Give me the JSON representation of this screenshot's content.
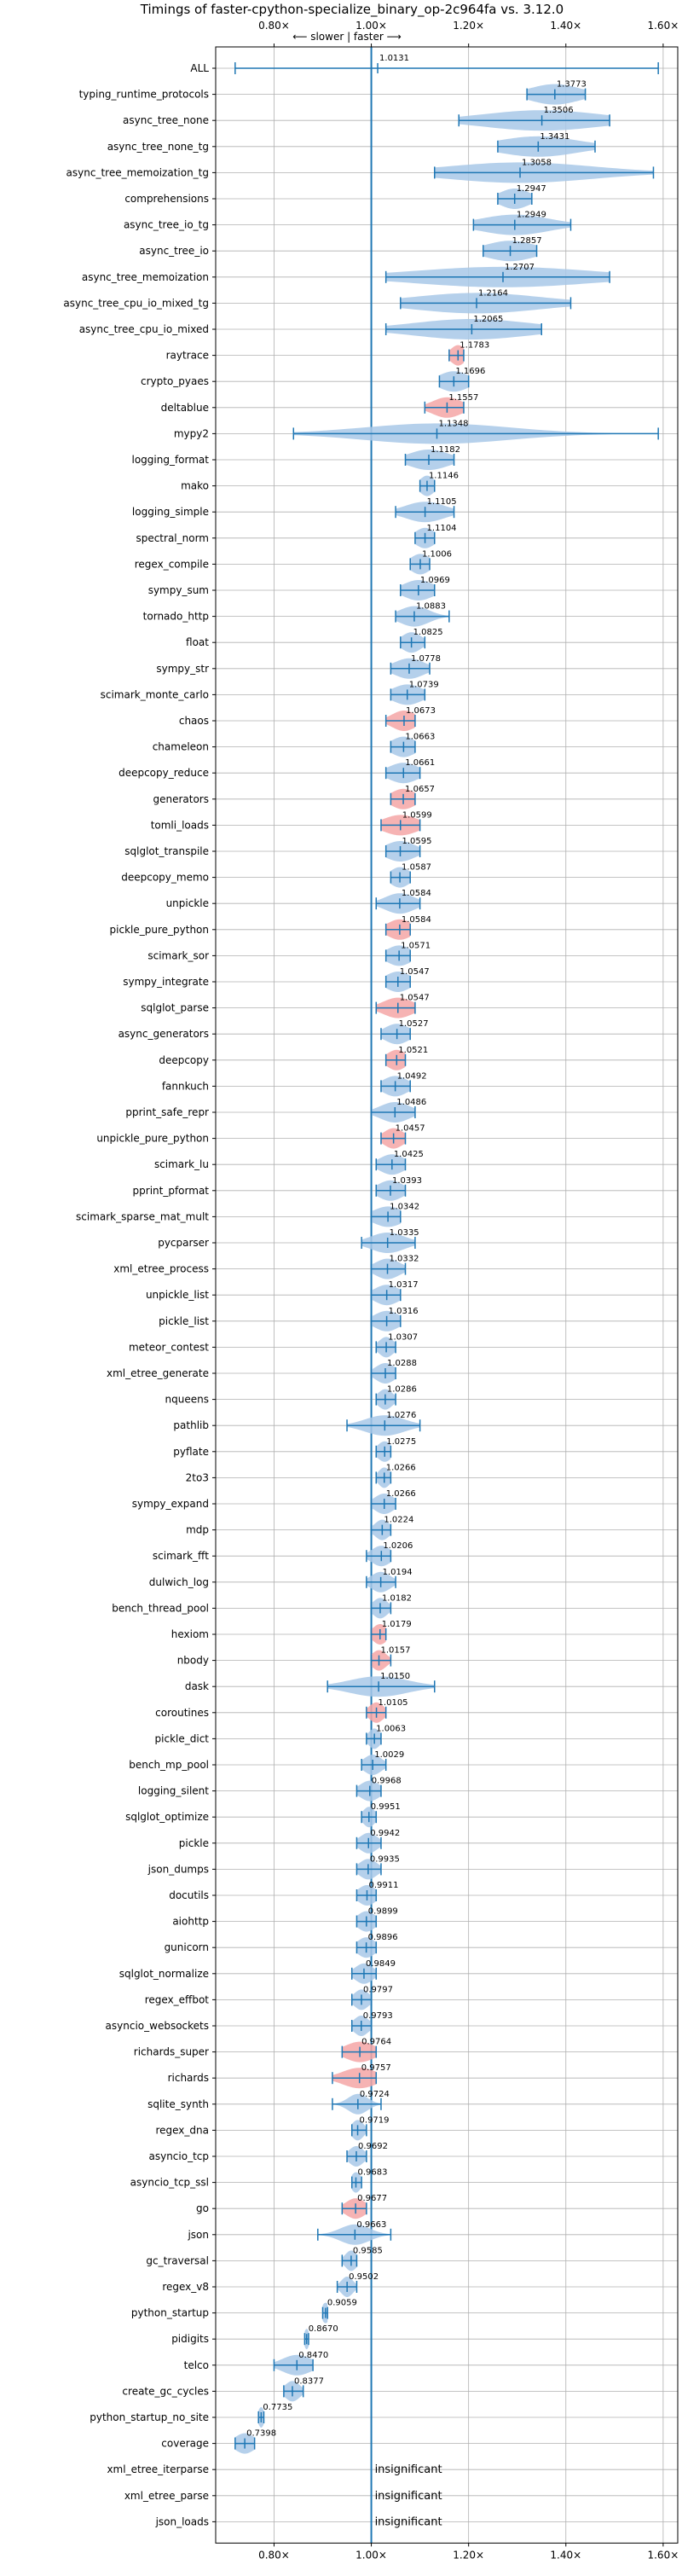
{
  "chart_data": {
    "type": "violin",
    "title": "Timings of faster-cpython-specialize_binary_op-2c964fa vs. 3.12.0",
    "direction_annotation": "⟵ slower | faster ⟶",
    "xlim": [
      0.68,
      1.63
    ],
    "x_ticks": [
      0.8,
      1.0,
      1.2,
      1.4,
      1.6
    ],
    "x_tick_labels": [
      "0.80×",
      "1.00×",
      "1.20×",
      "1.40×",
      "1.60×"
    ],
    "reference_x": 1.0,
    "colors": {
      "normal": "#a8c8e8",
      "highlight": "#f4a6a6",
      "line": "#1f77b4"
    },
    "insignificant_label": "insignificant",
    "benchmarks": [
      {
        "name": "ALL",
        "value": 1.0131,
        "label": "1.0131",
        "min": 0.72,
        "max": 1.59,
        "spread": 0.0,
        "highlight": false
      },
      {
        "name": "typing_runtime_protocols",
        "value": 1.3773,
        "label": "1.3773",
        "min": 1.32,
        "max": 1.44,
        "spread": 0.05,
        "highlight": false
      },
      {
        "name": "async_tree_none",
        "value": 1.3506,
        "label": "1.3506",
        "min": 1.18,
        "max": 1.49,
        "spread": 0.12,
        "highlight": false
      },
      {
        "name": "async_tree_none_tg",
        "value": 1.3431,
        "label": "1.3431",
        "min": 1.26,
        "max": 1.46,
        "spread": 0.08,
        "highlight": false
      },
      {
        "name": "async_tree_memoization_tg",
        "value": 1.3058,
        "label": "1.3058",
        "min": 1.13,
        "max": 1.58,
        "spread": 0.15,
        "highlight": false
      },
      {
        "name": "comprehensions",
        "value": 1.2947,
        "label": "1.2947",
        "min": 1.26,
        "max": 1.33,
        "spread": 0.03,
        "highlight": false
      },
      {
        "name": "async_tree_io_tg",
        "value": 1.2949,
        "label": "1.2949",
        "min": 1.21,
        "max": 1.41,
        "spread": 0.07,
        "highlight": false
      },
      {
        "name": "async_tree_io",
        "value": 1.2857,
        "label": "1.2857",
        "min": 1.23,
        "max": 1.34,
        "spread": 0.05,
        "highlight": false
      },
      {
        "name": "async_tree_memoization",
        "value": 1.2707,
        "label": "1.2707",
        "min": 1.03,
        "max": 1.49,
        "spread": 0.18,
        "highlight": false
      },
      {
        "name": "async_tree_cpu_io_mixed_tg",
        "value": 1.2164,
        "label": "1.2164",
        "min": 1.06,
        "max": 1.41,
        "spread": 0.13,
        "highlight": false
      },
      {
        "name": "async_tree_cpu_io_mixed",
        "value": 1.2065,
        "label": "1.2065",
        "min": 1.03,
        "max": 1.35,
        "spread": 0.12,
        "highlight": false
      },
      {
        "name": "raytrace",
        "value": 1.1783,
        "label": "1.1783",
        "min": 1.16,
        "max": 1.19,
        "spread": 0.015,
        "highlight": true
      },
      {
        "name": "crypto_pyaes",
        "value": 1.1696,
        "label": "1.1696",
        "min": 1.14,
        "max": 1.2,
        "spread": 0.03,
        "highlight": false
      },
      {
        "name": "deltablue",
        "value": 1.1557,
        "label": "1.1557",
        "min": 1.11,
        "max": 1.19,
        "spread": 0.03,
        "highlight": true
      },
      {
        "name": "mypy2",
        "value": 1.1348,
        "label": "1.1348",
        "min": 0.84,
        "max": 1.59,
        "spread": 0.15,
        "highlight": false
      },
      {
        "name": "logging_format",
        "value": 1.1182,
        "label": "1.1182",
        "min": 1.07,
        "max": 1.17,
        "spread": 0.04,
        "highlight": false
      },
      {
        "name": "mako",
        "value": 1.1146,
        "label": "1.1146",
        "min": 1.1,
        "max": 1.13,
        "spread": 0.015,
        "highlight": false
      },
      {
        "name": "logging_simple",
        "value": 1.1105,
        "label": "1.1105",
        "min": 1.05,
        "max": 1.17,
        "spread": 0.04,
        "highlight": false
      },
      {
        "name": "spectral_norm",
        "value": 1.1104,
        "label": "1.1104",
        "min": 1.09,
        "max": 1.13,
        "spread": 0.02,
        "highlight": false
      },
      {
        "name": "regex_compile",
        "value": 1.1006,
        "label": "1.1006",
        "min": 1.08,
        "max": 1.12,
        "spread": 0.02,
        "highlight": false
      },
      {
        "name": "sympy_sum",
        "value": 1.0969,
        "label": "1.0969",
        "min": 1.06,
        "max": 1.13,
        "spread": 0.03,
        "highlight": false
      },
      {
        "name": "tornado_http",
        "value": 1.0883,
        "label": "1.0883",
        "min": 1.05,
        "max": 1.16,
        "spread": 0.03,
        "highlight": false
      },
      {
        "name": "float",
        "value": 1.0825,
        "label": "1.0825",
        "min": 1.06,
        "max": 1.11,
        "spread": 0.02,
        "highlight": false
      },
      {
        "name": "sympy_str",
        "value": 1.0778,
        "label": "1.0778",
        "min": 1.04,
        "max": 1.12,
        "spread": 0.03,
        "highlight": false
      },
      {
        "name": "scimark_monte_carlo",
        "value": 1.0739,
        "label": "1.0739",
        "min": 1.04,
        "max": 1.11,
        "spread": 0.03,
        "highlight": false
      },
      {
        "name": "chaos",
        "value": 1.0673,
        "label": "1.0673",
        "min": 1.03,
        "max": 1.09,
        "spread": 0.025,
        "highlight": true
      },
      {
        "name": "chameleon",
        "value": 1.0663,
        "label": "1.0663",
        "min": 1.04,
        "max": 1.09,
        "spread": 0.025,
        "highlight": false
      },
      {
        "name": "deepcopy_reduce",
        "value": 1.0661,
        "label": "1.0661",
        "min": 1.03,
        "max": 1.1,
        "spread": 0.03,
        "highlight": false
      },
      {
        "name": "generators",
        "value": 1.0657,
        "label": "1.0657",
        "min": 1.04,
        "max": 1.09,
        "spread": 0.025,
        "highlight": true
      },
      {
        "name": "tomli_loads",
        "value": 1.0599,
        "label": "1.0599",
        "min": 1.02,
        "max": 1.1,
        "spread": 0.035,
        "highlight": true
      },
      {
        "name": "sqlglot_transpile",
        "value": 1.0595,
        "label": "1.0595",
        "min": 1.03,
        "max": 1.1,
        "spread": 0.03,
        "highlight": false
      },
      {
        "name": "deepcopy_memo",
        "value": 1.0587,
        "label": "1.0587",
        "min": 1.04,
        "max": 1.08,
        "spread": 0.02,
        "highlight": false
      },
      {
        "name": "unpickle",
        "value": 1.0584,
        "label": "1.0584",
        "min": 1.01,
        "max": 1.1,
        "spread": 0.03,
        "highlight": false
      },
      {
        "name": "pickle_pure_python",
        "value": 1.0584,
        "label": "1.0584",
        "min": 1.03,
        "max": 1.08,
        "spread": 0.025,
        "highlight": true
      },
      {
        "name": "scimark_sor",
        "value": 1.0571,
        "label": "1.0571",
        "min": 1.03,
        "max": 1.08,
        "spread": 0.025,
        "highlight": false
      },
      {
        "name": "sympy_integrate",
        "value": 1.0547,
        "label": "1.0547",
        "min": 1.03,
        "max": 1.08,
        "spread": 0.025,
        "highlight": false
      },
      {
        "name": "sqlglot_parse",
        "value": 1.0547,
        "label": "1.0547",
        "min": 1.01,
        "max": 1.09,
        "spread": 0.03,
        "highlight": true
      },
      {
        "name": "async_generators",
        "value": 1.0527,
        "label": "1.0527",
        "min": 1.02,
        "max": 1.08,
        "spread": 0.025,
        "highlight": false
      },
      {
        "name": "deepcopy",
        "value": 1.0521,
        "label": "1.0521",
        "min": 1.03,
        "max": 1.07,
        "spread": 0.02,
        "highlight": true
      },
      {
        "name": "fannkuch",
        "value": 1.0492,
        "label": "1.0492",
        "min": 1.02,
        "max": 1.08,
        "spread": 0.025,
        "highlight": false
      },
      {
        "name": "pprint_safe_repr",
        "value": 1.0486,
        "label": "1.0486",
        "min": 1.0,
        "max": 1.09,
        "spread": 0.03,
        "highlight": false
      },
      {
        "name": "unpickle_pure_python",
        "value": 1.0457,
        "label": "1.0457",
        "min": 1.02,
        "max": 1.07,
        "spread": 0.02,
        "highlight": true
      },
      {
        "name": "scimark_lu",
        "value": 1.0425,
        "label": "1.0425",
        "min": 1.01,
        "max": 1.07,
        "spread": 0.025,
        "highlight": false
      },
      {
        "name": "pprint_pformat",
        "value": 1.0393,
        "label": "1.0393",
        "min": 1.01,
        "max": 1.07,
        "spread": 0.025,
        "highlight": false
      },
      {
        "name": "scimark_sparse_mat_mult",
        "value": 1.0342,
        "label": "1.0342",
        "min": 1.0,
        "max": 1.06,
        "spread": 0.03,
        "highlight": false
      },
      {
        "name": "pycparser",
        "value": 1.0335,
        "label": "1.0335",
        "min": 0.98,
        "max": 1.09,
        "spread": 0.035,
        "highlight": false
      },
      {
        "name": "xml_etree_process",
        "value": 1.0332,
        "label": "1.0332",
        "min": 1.0,
        "max": 1.07,
        "spread": 0.025,
        "highlight": false
      },
      {
        "name": "unpickle_list",
        "value": 1.0317,
        "label": "1.0317",
        "min": 1.0,
        "max": 1.06,
        "spread": 0.025,
        "highlight": false
      },
      {
        "name": "pickle_list",
        "value": 1.0316,
        "label": "1.0316",
        "min": 1.0,
        "max": 1.06,
        "spread": 0.025,
        "highlight": false
      },
      {
        "name": "meteor_contest",
        "value": 1.0307,
        "label": "1.0307",
        "min": 1.01,
        "max": 1.05,
        "spread": 0.015,
        "highlight": false
      },
      {
        "name": "xml_etree_generate",
        "value": 1.0288,
        "label": "1.0288",
        "min": 1.0,
        "max": 1.05,
        "spread": 0.02,
        "highlight": false
      },
      {
        "name": "nqueens",
        "value": 1.0286,
        "label": "1.0286",
        "min": 1.01,
        "max": 1.05,
        "spread": 0.015,
        "highlight": false
      },
      {
        "name": "pathlib",
        "value": 1.0276,
        "label": "1.0276",
        "min": 0.95,
        "max": 1.1,
        "spread": 0.04,
        "highlight": false
      },
      {
        "name": "pyflate",
        "value": 1.0275,
        "label": "1.0275",
        "min": 1.01,
        "max": 1.04,
        "spread": 0.015,
        "highlight": false
      },
      {
        "name": "2to3",
        "value": 1.0266,
        "label": "1.0266",
        "min": 1.01,
        "max": 1.04,
        "spread": 0.012,
        "highlight": false
      },
      {
        "name": "sympy_expand",
        "value": 1.0266,
        "label": "1.0266",
        "min": 1.0,
        "max": 1.05,
        "spread": 0.02,
        "highlight": false
      },
      {
        "name": "mdp",
        "value": 1.0224,
        "label": "1.0224",
        "min": 1.0,
        "max": 1.04,
        "spread": 0.015,
        "highlight": false
      },
      {
        "name": "scimark_fft",
        "value": 1.0206,
        "label": "1.0206",
        "min": 0.99,
        "max": 1.04,
        "spread": 0.02,
        "highlight": false
      },
      {
        "name": "dulwich_log",
        "value": 1.0194,
        "label": "1.0194",
        "min": 0.99,
        "max": 1.05,
        "spread": 0.02,
        "highlight": false
      },
      {
        "name": "bench_thread_pool",
        "value": 1.0182,
        "label": "1.0182",
        "min": 1.0,
        "max": 1.04,
        "spread": 0.015,
        "highlight": false
      },
      {
        "name": "hexiom",
        "value": 1.0179,
        "label": "1.0179",
        "min": 1.0,
        "max": 1.03,
        "spread": 0.015,
        "highlight": true
      },
      {
        "name": "nbody",
        "value": 1.0157,
        "label": "1.0157",
        "min": 1.0,
        "max": 1.04,
        "spread": 0.015,
        "highlight": true
      },
      {
        "name": "dask",
        "value": 1.015,
        "label": "1.0150",
        "min": 0.91,
        "max": 1.13,
        "spread": 0.06,
        "highlight": false
      },
      {
        "name": "coroutines",
        "value": 1.0105,
        "label": "1.0105",
        "min": 0.99,
        "max": 1.03,
        "spread": 0.015,
        "highlight": true
      },
      {
        "name": "pickle_dict",
        "value": 1.0063,
        "label": "1.0063",
        "min": 0.99,
        "max": 1.02,
        "spread": 0.012,
        "highlight": false
      },
      {
        "name": "bench_mp_pool",
        "value": 1.0029,
        "label": "1.0029",
        "min": 0.98,
        "max": 1.03,
        "spread": 0.018,
        "highlight": false
      },
      {
        "name": "logging_silent",
        "value": 0.9968,
        "label": "0.9968",
        "min": 0.97,
        "max": 1.02,
        "spread": 0.02,
        "highlight": false
      },
      {
        "name": "sqlglot_optimize",
        "value": 0.9951,
        "label": "0.9951",
        "min": 0.98,
        "max": 1.01,
        "spread": 0.012,
        "highlight": false
      },
      {
        "name": "pickle",
        "value": 0.9942,
        "label": "0.9942",
        "min": 0.97,
        "max": 1.02,
        "spread": 0.018,
        "highlight": false
      },
      {
        "name": "json_dumps",
        "value": 0.9935,
        "label": "0.9935",
        "min": 0.97,
        "max": 1.02,
        "spread": 0.018,
        "highlight": false
      },
      {
        "name": "docutils",
        "value": 0.9911,
        "label": "0.9911",
        "min": 0.97,
        "max": 1.01,
        "spread": 0.018,
        "highlight": false
      },
      {
        "name": "aiohttp",
        "value": 0.9899,
        "label": "0.9899",
        "min": 0.97,
        "max": 1.01,
        "spread": 0.018,
        "highlight": false
      },
      {
        "name": "gunicorn",
        "value": 0.9896,
        "label": "0.9896",
        "min": 0.97,
        "max": 1.01,
        "spread": 0.018,
        "highlight": false
      },
      {
        "name": "sqlglot_normalize",
        "value": 0.9849,
        "label": "0.9849",
        "min": 0.96,
        "max": 1.01,
        "spread": 0.018,
        "highlight": false
      },
      {
        "name": "regex_effbot",
        "value": 0.9797,
        "label": "0.9797",
        "min": 0.96,
        "max": 1.0,
        "spread": 0.015,
        "highlight": false
      },
      {
        "name": "asyncio_websockets",
        "value": 0.9793,
        "label": "0.9793",
        "min": 0.96,
        "max": 1.0,
        "spread": 0.015,
        "highlight": false
      },
      {
        "name": "richards_super",
        "value": 0.9764,
        "label": "0.9764",
        "min": 0.94,
        "max": 1.01,
        "spread": 0.03,
        "highlight": true
      },
      {
        "name": "richards",
        "value": 0.9757,
        "label": "0.9757",
        "min": 0.92,
        "max": 1.01,
        "spread": 0.035,
        "highlight": true
      },
      {
        "name": "sqlite_synth",
        "value": 0.9724,
        "label": "0.9724",
        "min": 0.92,
        "max": 1.02,
        "spread": 0.02,
        "highlight": false
      },
      {
        "name": "regex_dna",
        "value": 0.9719,
        "label": "0.9719",
        "min": 0.96,
        "max": 0.99,
        "spread": 0.012,
        "highlight": false
      },
      {
        "name": "asyncio_tcp",
        "value": 0.9692,
        "label": "0.9692",
        "min": 0.95,
        "max": 0.99,
        "spread": 0.015,
        "highlight": false
      },
      {
        "name": "asyncio_tcp_ssl",
        "value": 0.9683,
        "label": "0.9683",
        "min": 0.96,
        "max": 0.98,
        "spread": 0.01,
        "highlight": false
      },
      {
        "name": "go",
        "value": 0.9677,
        "label": "0.9677",
        "min": 0.94,
        "max": 0.99,
        "spread": 0.02,
        "highlight": true
      },
      {
        "name": "json",
        "value": 0.9663,
        "label": "0.9663",
        "min": 0.89,
        "max": 1.04,
        "spread": 0.03,
        "highlight": false
      },
      {
        "name": "gc_traversal",
        "value": 0.9585,
        "label": "0.9585",
        "min": 0.94,
        "max": 0.97,
        "spread": 0.012,
        "highlight": false
      },
      {
        "name": "regex_v8",
        "value": 0.9502,
        "label": "0.9502",
        "min": 0.93,
        "max": 0.97,
        "spread": 0.012,
        "highlight": false
      },
      {
        "name": "python_startup",
        "value": 0.9059,
        "label": "0.9059",
        "min": 0.9,
        "max": 0.91,
        "spread": 0.008,
        "highlight": false
      },
      {
        "name": "pidigits",
        "value": 0.867,
        "label": "0.8670",
        "min": 0.863,
        "max": 0.871,
        "spread": 0.005,
        "highlight": false
      },
      {
        "name": "telco",
        "value": 0.847,
        "label": "0.8470",
        "min": 0.8,
        "max": 0.88,
        "spread": 0.03,
        "highlight": false
      },
      {
        "name": "create_gc_cycles",
        "value": 0.8377,
        "label": "0.8377",
        "min": 0.82,
        "max": 0.86,
        "spread": 0.015,
        "highlight": false
      },
      {
        "name": "python_startup_no_site",
        "value": 0.7735,
        "label": "0.7735",
        "min": 0.768,
        "max": 0.779,
        "spread": 0.006,
        "highlight": false
      },
      {
        "name": "coverage",
        "value": 0.7398,
        "label": "0.7398",
        "min": 0.72,
        "max": 0.76,
        "spread": 0.02,
        "highlight": false
      },
      {
        "name": "xml_etree_iterparse",
        "value": null,
        "label": "",
        "insignificant": true
      },
      {
        "name": "xml_etree_parse",
        "value": null,
        "label": "",
        "insignificant": true
      },
      {
        "name": "json_loads",
        "value": null,
        "label": "",
        "insignificant": true
      }
    ]
  }
}
